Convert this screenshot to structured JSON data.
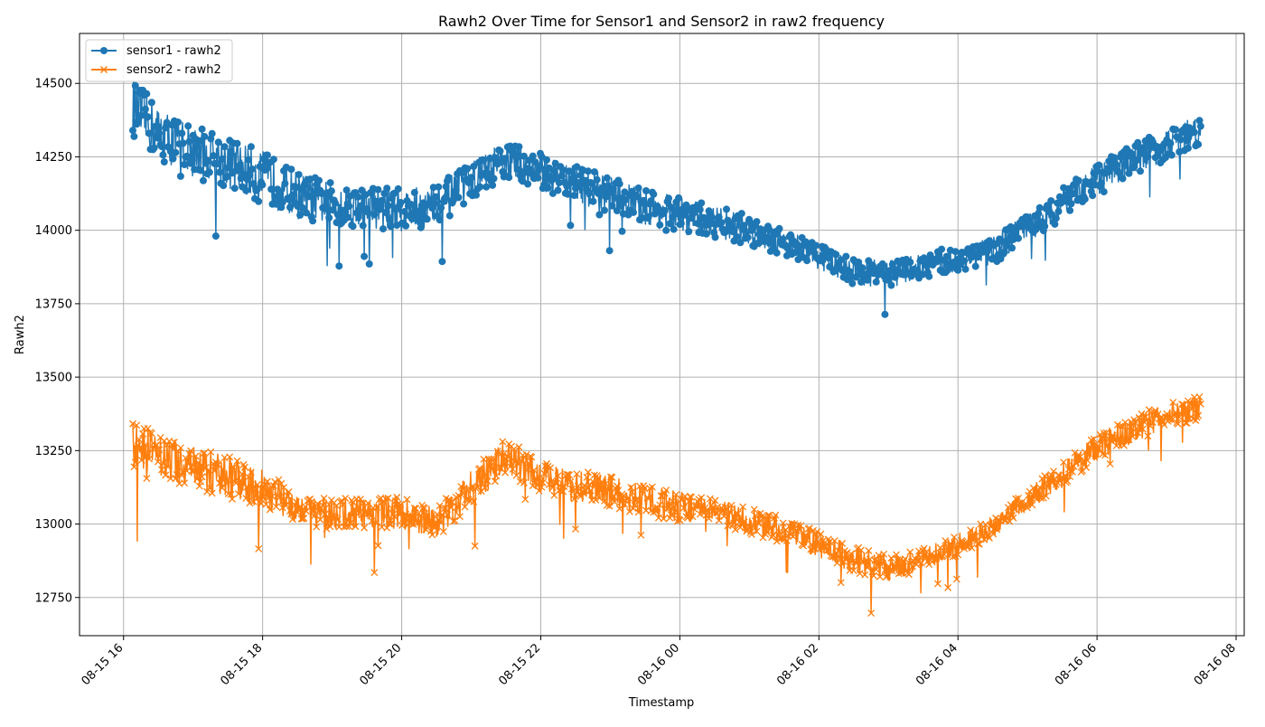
{
  "chart_data": {
    "type": "line",
    "title": "Rawh2 Over Time for Sensor1 and Sensor2 in raw2 frequency",
    "xlabel": "Timestamp",
    "ylabel": "Rawh2",
    "xlim": [
      "2024-08-15 15:22",
      "2024-08-16 08:07"
    ],
    "ylim": [
      12620,
      14670
    ],
    "grid": true,
    "legend_position": "top-left",
    "x_ticks": [
      {
        "t": "2024-08-15 16:00",
        "label": "08-15 16"
      },
      {
        "t": "2024-08-15 18:00",
        "label": "08-15 18"
      },
      {
        "t": "2024-08-15 20:00",
        "label": "08-15 20"
      },
      {
        "t": "2024-08-15 22:00",
        "label": "08-15 22"
      },
      {
        "t": "2024-08-16 00:00",
        "label": "08-16 00"
      },
      {
        "t": "2024-08-16 02:00",
        "label": "08-16 02"
      },
      {
        "t": "2024-08-16 04:00",
        "label": "08-16 04"
      },
      {
        "t": "2024-08-16 06:00",
        "label": "08-16 06"
      },
      {
        "t": "2024-08-16 08:00",
        "label": "08-16 08"
      }
    ],
    "y_ticks": [
      12750,
      13000,
      13250,
      13500,
      13750,
      14000,
      14250,
      14500
    ],
    "series": [
      {
        "name": "sensor1 - rawh2",
        "color": "#1f77b4",
        "marker": "circle",
        "x": [
          "2024-08-15 16:08",
          "2024-08-15 16:30",
          "2024-08-15 17:00",
          "2024-08-15 17:30",
          "2024-08-15 18:00",
          "2024-08-15 18:30",
          "2024-08-15 19:00",
          "2024-08-15 19:30",
          "2024-08-15 20:00",
          "2024-08-15 20:30",
          "2024-08-15 21:00",
          "2024-08-15 21:30",
          "2024-08-15 22:00",
          "2024-08-15 22:30",
          "2024-08-15 23:00",
          "2024-08-15 23:30",
          "2024-08-16 00:00",
          "2024-08-16 00:30",
          "2024-08-16 01:00",
          "2024-08-16 01:30",
          "2024-08-16 02:00",
          "2024-08-16 02:30",
          "2024-08-16 03:00",
          "2024-08-16 03:30",
          "2024-08-16 04:00",
          "2024-08-16 04:30",
          "2024-08-16 05:00",
          "2024-08-16 05:30",
          "2024-08-16 06:00",
          "2024-08-16 06:30",
          "2024-08-16 07:00",
          "2024-08-16 07:30"
        ],
        "y": [
          14420,
          14330,
          14270,
          14230,
          14180,
          14120,
          14090,
          14080,
          14070,
          14080,
          14170,
          14240,
          14200,
          14160,
          14120,
          14080,
          14050,
          14030,
          14000,
          13960,
          13910,
          13860,
          13850,
          13880,
          13900,
          13930,
          14010,
          14090,
          14170,
          14240,
          14290,
          14350
        ],
        "band": [
          110,
          100,
          100,
          100,
          100,
          90,
          80,
          80,
          80,
          80,
          70,
          70,
          70,
          70,
          70,
          70,
          70,
          60,
          60,
          50,
          50,
          50,
          50,
          50,
          50,
          50,
          60,
          60,
          60,
          60,
          60,
          60
        ]
      },
      {
        "name": "sensor2 - rawh2",
        "color": "#ff7f0e",
        "marker": "x",
        "x": [
          "2024-08-15 16:08",
          "2024-08-15 16:30",
          "2024-08-15 17:00",
          "2024-08-15 17:30",
          "2024-08-15 18:00",
          "2024-08-15 18:30",
          "2024-08-15 19:00",
          "2024-08-15 19:30",
          "2024-08-15 20:00",
          "2024-08-15 20:30",
          "2024-08-15 21:00",
          "2024-08-15 21:30",
          "2024-08-15 22:00",
          "2024-08-15 22:30",
          "2024-08-15 23:00",
          "2024-08-15 23:30",
          "2024-08-16 00:00",
          "2024-08-16 00:30",
          "2024-08-16 01:00",
          "2024-08-16 01:30",
          "2024-08-16 02:00",
          "2024-08-16 02:30",
          "2024-08-16 03:00",
          "2024-08-16 03:30",
          "2024-08-16 04:00",
          "2024-08-16 04:30",
          "2024-08-16 05:00",
          "2024-08-16 05:30",
          "2024-08-16 06:00",
          "2024-08-16 06:30",
          "2024-08-16 07:00",
          "2024-08-16 07:30"
        ],
        "y": [
          13270,
          13240,
          13190,
          13160,
          13120,
          13060,
          13030,
          13040,
          13040,
          13000,
          13120,
          13230,
          13160,
          13130,
          13110,
          13080,
          13060,
          13040,
          13010,
          12980,
          12930,
          12880,
          12850,
          12880,
          12930,
          12990,
          13080,
          13170,
          13260,
          13320,
          13370,
          13400
        ],
        "band": [
          90,
          80,
          80,
          80,
          70,
          60,
          60,
          60,
          60,
          60,
          70,
          70,
          60,
          60,
          60,
          60,
          60,
          50,
          50,
          50,
          50,
          50,
          50,
          40,
          40,
          40,
          40,
          50,
          50,
          50,
          50,
          50
        ]
      }
    ]
  }
}
